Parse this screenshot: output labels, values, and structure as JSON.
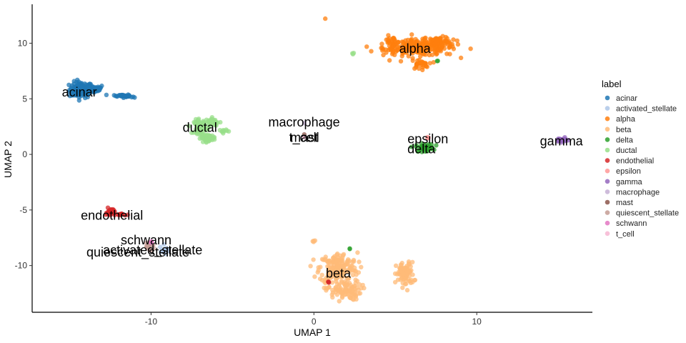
{
  "chart_data": {
    "type": "scatter",
    "xlabel": "UMAP 1",
    "ylabel": "UMAP 2",
    "xlim": [
      -17.3,
      17.1
    ],
    "ylim": [
      -14.2,
      13.5
    ],
    "x_ticks": [
      -10,
      0,
      10
    ],
    "y_ticks": [
      -10,
      -5,
      0,
      5,
      10
    ],
    "grid": false,
    "legend_position": "right",
    "legend_title": "label",
    "categories": [
      {
        "name": "acinar",
        "color": "#1f77b4"
      },
      {
        "name": "activated_stellate",
        "color": "#aec7e8"
      },
      {
        "name": "alpha",
        "color": "#ff7f0e"
      },
      {
        "name": "beta",
        "color": "#ffbb78"
      },
      {
        "name": "delta",
        "color": "#2ca02c"
      },
      {
        "name": "ductal",
        "color": "#98df8a"
      },
      {
        "name": "endothelial",
        "color": "#d62728"
      },
      {
        "name": "epsilon",
        "color": "#ff9896"
      },
      {
        "name": "gamma",
        "color": "#9467bd"
      },
      {
        "name": "macrophage",
        "color": "#c5b0d5"
      },
      {
        "name": "mast",
        "color": "#8c564b"
      },
      {
        "name": "quiescent_stellate",
        "color": "#c49c94"
      },
      {
        "name": "schwann",
        "color": "#e377c2"
      },
      {
        "name": "t_cell",
        "color": "#f7b6d2"
      }
    ],
    "clusters": [
      {
        "label": "acinar",
        "blobs": [
          [
            -14.3,
            5.8,
            0.8,
            0.8,
            120
          ],
          [
            -13.5,
            5.9,
            0.7,
            0.4,
            40
          ],
          [
            -11.8,
            5.3,
            0.6,
            0.1,
            25
          ],
          [
            -11.5,
            5.2,
            0.4,
            0.1,
            15
          ]
        ]
      },
      {
        "label": "activated_stellate",
        "blobs": [
          [
            -9.2,
            -8.6,
            0.3,
            0.5,
            12
          ],
          [
            -10.0,
            -8.2,
            0.3,
            0.3,
            6
          ]
        ]
      },
      {
        "label": "alpha",
        "blobs": [
          [
            6.5,
            9.6,
            2.5,
            0.8,
            220
          ],
          [
            7.7,
            10.2,
            0.8,
            0.4,
            60
          ],
          [
            4.8,
            9.9,
            0.6,
            0.8,
            40
          ],
          [
            6.5,
            8.1,
            0.6,
            0.5,
            30
          ],
          [
            0.7,
            12.2,
            0.03,
            0.03,
            1
          ]
        ]
      },
      {
        "label": "beta",
        "blobs": [
          [
            1.5,
            -10.2,
            1.3,
            1.5,
            180
          ],
          [
            1.8,
            -12.2,
            1.2,
            1.0,
            100
          ],
          [
            5.6,
            -10.8,
            0.6,
            1.2,
            90
          ],
          [
            0.0,
            -7.8,
            0.15,
            0.1,
            4
          ]
        ]
      },
      {
        "label": "delta",
        "blobs": [
          [
            6.8,
            0.6,
            0.6,
            0.4,
            40
          ],
          [
            7.6,
            8.4,
            0.05,
            0.05,
            2
          ],
          [
            2.2,
            -8.5,
            0.05,
            0.05,
            2
          ]
        ]
      },
      {
        "label": "ductal",
        "blobs": [
          [
            -6.5,
            1.5,
            0.5,
            0.3,
            70
          ],
          [
            -7.0,
            2.5,
            0.4,
            0.7,
            60
          ],
          [
            -6.2,
            2.9,
            0.5,
            0.4,
            40
          ],
          [
            -5.6,
            2.1,
            0.3,
            0.2,
            10
          ],
          [
            2.4,
            9.1,
            0.08,
            0.08,
            3
          ]
        ]
      },
      {
        "label": "endothelial",
        "blobs": [
          [
            -12.5,
            -5.2,
            0.3,
            0.4,
            30
          ],
          [
            -11.8,
            -5.4,
            0.3,
            0.1,
            10
          ],
          [
            0.9,
            -11.5,
            0.05,
            0.1,
            3
          ]
        ]
      },
      {
        "label": "epsilon",
        "blobs": [
          [
            7.0,
            1.5,
            0.1,
            0.1,
            3
          ]
        ]
      },
      {
        "label": "gamma",
        "blobs": [
          [
            15.2,
            1.3,
            0.4,
            0.2,
            30
          ]
        ]
      },
      {
        "label": "macrophage",
        "blobs": [
          [
            -0.6,
            2.8,
            0.03,
            0.03,
            1
          ]
        ]
      },
      {
        "label": "mast",
        "blobs": [
          [
            -0.6,
            1.8,
            0.03,
            0.03,
            1
          ]
        ]
      },
      {
        "label": "quiescent_stellate",
        "blobs": [
          [
            -10.1,
            -8.3,
            0.35,
            0.3,
            15
          ]
        ]
      },
      {
        "label": "schwann",
        "blobs": [
          [
            -10.0,
            -7.9,
            0.12,
            0.1,
            4
          ]
        ]
      },
      {
        "label": "t_cell",
        "blobs": [
          [
            -0.6,
            1.6,
            0.03,
            0.03,
            1
          ]
        ]
      }
    ],
    "annotations": [
      {
        "text": "alpha",
        "x": 6.2,
        "y": 9.5
      },
      {
        "text": "acinar",
        "x": -14.4,
        "y": 5.6
      },
      {
        "text": "macrophage",
        "x": -0.6,
        "y": 2.9
      },
      {
        "text": "t_cell",
        "x": -0.6,
        "y": 1.5
      },
      {
        "text": "mast",
        "x": -0.6,
        "y": 1.5
      },
      {
        "text": "ductal",
        "x": -7.0,
        "y": 2.4
      },
      {
        "text": "epsilon",
        "x": 7.0,
        "y": 1.4
      },
      {
        "text": "delta",
        "x": 6.6,
        "y": 0.5
      },
      {
        "text": "gamma",
        "x": 15.2,
        "y": 1.2
      },
      {
        "text": "endothelial",
        "x": -12.4,
        "y": -5.5
      },
      {
        "text": "schwann",
        "x": -10.3,
        "y": -7.7
      },
      {
        "text": "activated_stellate",
        "x": -9.9,
        "y": -8.6
      },
      {
        "text": "quiescent_stellate",
        "x": -10.8,
        "y": -8.8
      },
      {
        "text": "beta",
        "x": 1.5,
        "y": -10.7
      }
    ]
  }
}
